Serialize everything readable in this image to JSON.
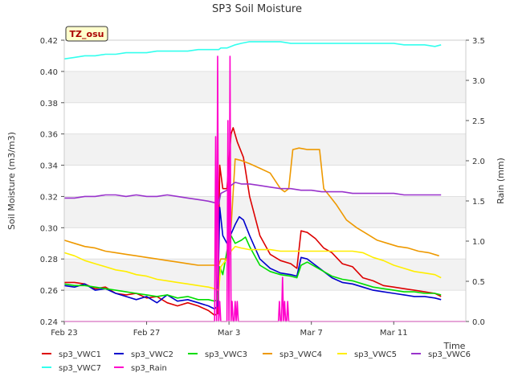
{
  "chart_data": {
    "type": "line",
    "title": "SP3 Soil Moisture",
    "xlabel": "Time",
    "ylabel": "Soil Moisture (m3/m3)",
    "y2label": "Rain (mm)",
    "site_tag": "TZ_osu",
    "xlim": [
      0,
      19.5
    ],
    "ylim": [
      0.24,
      0.42
    ],
    "y2lim": [
      0.0,
      3.5
    ],
    "x_ticks": [
      {
        "value": 0,
        "label": "Feb 23"
      },
      {
        "value": 4,
        "label": "Feb 27"
      },
      {
        "value": 8,
        "label": "Mar 3"
      },
      {
        "value": 12,
        "label": "Mar 7"
      },
      {
        "value": 16,
        "label": "Mar 11"
      }
    ],
    "y_ticks": [
      0.24,
      0.26,
      0.28,
      0.3,
      0.32,
      0.34,
      0.36,
      0.38,
      0.4,
      0.42
    ],
    "y_tick_labels": [
      "0.24",
      "0.26",
      "0.28",
      "0.30",
      "0.32",
      "0.34",
      "0.36",
      "0.38",
      "0.40",
      "0.42"
    ],
    "y2_ticks": [
      0.0,
      0.5,
      1.0,
      1.5,
      2.0,
      2.5,
      3.0,
      3.5
    ],
    "y2_tick_labels": [
      "0.0",
      "0.5",
      "1.0",
      "1.5",
      "2.0",
      "2.5",
      "3.0",
      "3.5"
    ],
    "grid": "horizontal bands",
    "legend_position": "bottom",
    "series": [
      {
        "name": "sp3_VWC1",
        "color": "#dd0000",
        "axis": "left",
        "x": [
          0,
          0.5,
          1,
          1.5,
          2,
          2.5,
          3,
          3.5,
          4,
          4.5,
          5,
          5.5,
          6,
          6.5,
          7,
          7.3,
          7.45,
          7.55,
          7.7,
          7.9,
          8.1,
          8.2,
          8.4,
          8.7,
          9.0,
          9.5,
          10,
          10.5,
          11,
          11.3,
          11.5,
          11.8,
          12.2,
          12.6,
          13,
          13.5,
          14,
          14.5,
          15,
          15.5,
          16,
          16.5,
          17,
          17.5,
          18,
          18.3
        ],
        "y": [
          0.265,
          0.265,
          0.264,
          0.261,
          0.262,
          0.258,
          0.257,
          0.258,
          0.255,
          0.256,
          0.252,
          0.25,
          0.252,
          0.25,
          0.247,
          0.244,
          0.245,
          0.34,
          0.325,
          0.325,
          0.36,
          0.364,
          0.355,
          0.345,
          0.32,
          0.295,
          0.283,
          0.279,
          0.277,
          0.274,
          0.298,
          0.297,
          0.293,
          0.287,
          0.284,
          0.277,
          0.275,
          0.268,
          0.266,
          0.263,
          0.262,
          0.261,
          0.26,
          0.259,
          0.258,
          0.256
        ]
      },
      {
        "name": "sp3_VWC2",
        "color": "#0000cc",
        "axis": "left",
        "x": [
          0,
          0.5,
          1,
          1.5,
          2,
          2.5,
          3,
          3.5,
          4,
          4.5,
          5,
          5.5,
          6,
          6.5,
          7,
          7.3,
          7.45,
          7.55,
          7.7,
          7.9,
          8.1,
          8.3,
          8.5,
          8.7,
          9.0,
          9.5,
          10,
          10.5,
          11,
          11.3,
          11.5,
          11.8,
          12.2,
          12.6,
          13,
          13.5,
          14,
          14.5,
          15,
          15.5,
          16,
          16.5,
          17,
          17.5,
          18,
          18.3
        ],
        "y": [
          0.263,
          0.262,
          0.264,
          0.26,
          0.261,
          0.258,
          0.256,
          0.254,
          0.256,
          0.252,
          0.257,
          0.253,
          0.254,
          0.252,
          0.25,
          0.248,
          0.25,
          0.313,
          0.295,
          0.29,
          0.296,
          0.302,
          0.307,
          0.305,
          0.295,
          0.28,
          0.274,
          0.271,
          0.27,
          0.269,
          0.281,
          0.28,
          0.276,
          0.272,
          0.268,
          0.265,
          0.264,
          0.262,
          0.26,
          0.259,
          0.258,
          0.257,
          0.256,
          0.256,
          0.255,
          0.254
        ]
      },
      {
        "name": "sp3_VWC3",
        "color": "#00dd00",
        "axis": "left",
        "x": [
          0,
          0.5,
          1,
          1.5,
          2,
          2.5,
          3,
          3.5,
          4,
          4.5,
          5,
          5.5,
          6,
          6.5,
          7,
          7.3,
          7.45,
          7.55,
          7.7,
          7.9,
          8.1,
          8.3,
          8.6,
          8.8,
          9.0,
          9.5,
          10,
          10.5,
          11,
          11.3,
          11.5,
          11.8,
          12.2,
          12.6,
          13,
          13.5,
          14,
          14.5,
          15,
          15.5,
          16,
          16.5,
          17,
          17.5,
          18,
          18.3
        ],
        "y": [
          0.264,
          0.263,
          0.263,
          0.262,
          0.261,
          0.26,
          0.259,
          0.258,
          0.257,
          0.256,
          0.257,
          0.255,
          0.256,
          0.254,
          0.254,
          0.253,
          0.254,
          0.275,
          0.27,
          0.285,
          0.295,
          0.29,
          0.292,
          0.294,
          0.288,
          0.276,
          0.272,
          0.27,
          0.269,
          0.268,
          0.276,
          0.278,
          0.275,
          0.272,
          0.269,
          0.267,
          0.266,
          0.264,
          0.262,
          0.261,
          0.26,
          0.259,
          0.259,
          0.258,
          0.258,
          0.257
        ]
      },
      {
        "name": "sp3_VWC4",
        "color": "#ee9900",
        "axis": "left",
        "x": [
          0,
          0.5,
          1,
          1.5,
          2,
          2.5,
          3,
          3.5,
          4,
          4.5,
          5,
          5.5,
          6,
          6.5,
          7,
          7.3,
          7.5,
          7.6,
          7.9,
          8.1,
          8.3,
          8.6,
          9.0,
          9.5,
          10,
          10.5,
          10.7,
          10.9,
          11.1,
          11.4,
          11.8,
          12.2,
          12.4,
          12.6,
          12.9,
          13.2,
          13.7,
          14.2,
          14.7,
          15.2,
          15.7,
          16.2,
          16.7,
          17.2,
          17.7,
          18.2
        ],
        "y": [
          0.292,
          0.29,
          0.288,
          0.287,
          0.285,
          0.284,
          0.283,
          0.282,
          0.281,
          0.28,
          0.279,
          0.278,
          0.277,
          0.276,
          0.276,
          0.276,
          0.276,
          0.28,
          0.28,
          0.3,
          0.344,
          0.343,
          0.341,
          0.338,
          0.335,
          0.325,
          0.323,
          0.325,
          0.35,
          0.351,
          0.35,
          0.35,
          0.35,
          0.325,
          0.32,
          0.315,
          0.305,
          0.3,
          0.296,
          0.292,
          0.29,
          0.288,
          0.287,
          0.285,
          0.284,
          0.282
        ]
      },
      {
        "name": "sp3_VWC5",
        "color": "#ffee00",
        "axis": "left",
        "x": [
          0,
          0.5,
          1,
          1.5,
          2,
          2.5,
          3,
          3.5,
          4,
          4.5,
          5,
          5.5,
          6,
          6.5,
          7,
          7.3,
          7.5,
          7.6,
          7.9,
          8.1,
          8.3,
          8.6,
          9.0,
          9.5,
          10,
          10.5,
          11,
          11.5,
          12,
          12.5,
          13,
          13.5,
          14,
          14.5,
          15,
          15.5,
          16,
          16.5,
          17,
          17.5,
          18,
          18.3
        ],
        "y": [
          0.284,
          0.282,
          0.279,
          0.277,
          0.275,
          0.273,
          0.272,
          0.27,
          0.269,
          0.267,
          0.266,
          0.265,
          0.264,
          0.263,
          0.262,
          0.261,
          0.26,
          0.275,
          0.28,
          0.285,
          0.288,
          0.287,
          0.286,
          0.286,
          0.286,
          0.285,
          0.285,
          0.285,
          0.285,
          0.285,
          0.285,
          0.285,
          0.285,
          0.284,
          0.281,
          0.279,
          0.276,
          0.274,
          0.272,
          0.271,
          0.27,
          0.268
        ]
      },
      {
        "name": "sp3_VWC6",
        "color": "#9933cc",
        "axis": "left",
        "x": [
          0,
          0.5,
          1,
          1.5,
          2,
          2.5,
          3,
          3.5,
          4,
          4.5,
          5,
          5.5,
          6,
          6.5,
          7,
          7.3,
          7.5,
          7.6,
          7.9,
          8.1,
          8.3,
          8.6,
          9.0,
          9.5,
          10,
          10.5,
          11,
          11.5,
          12,
          12.5,
          13,
          13.5,
          14,
          14.5,
          15,
          15.5,
          16,
          16.5,
          17,
          17.5,
          18,
          18.3
        ],
        "y": [
          0.319,
          0.319,
          0.32,
          0.32,
          0.321,
          0.321,
          0.32,
          0.321,
          0.32,
          0.32,
          0.321,
          0.32,
          0.319,
          0.318,
          0.317,
          0.316,
          0.315,
          0.322,
          0.324,
          0.327,
          0.329,
          0.328,
          0.328,
          0.327,
          0.326,
          0.325,
          0.325,
          0.324,
          0.324,
          0.323,
          0.323,
          0.323,
          0.322,
          0.322,
          0.322,
          0.322,
          0.322,
          0.321,
          0.321,
          0.321,
          0.321,
          0.321
        ]
      },
      {
        "name": "sp3_VWC7",
        "color": "#33ffee",
        "axis": "left",
        "x": [
          0,
          0.5,
          1,
          1.5,
          2,
          2.5,
          3,
          3.5,
          4,
          4.5,
          5,
          5.5,
          6,
          6.5,
          7,
          7.3,
          7.5,
          7.6,
          7.9,
          8.1,
          8.3,
          8.6,
          9.0,
          9.5,
          10,
          10.5,
          11,
          11.5,
          12,
          12.5,
          13,
          13.5,
          14,
          14.5,
          15,
          15.5,
          16,
          16.5,
          17,
          17.5,
          18,
          18.3
        ],
        "y": [
          0.408,
          0.409,
          0.41,
          0.41,
          0.411,
          0.411,
          0.412,
          0.412,
          0.412,
          0.413,
          0.413,
          0.413,
          0.413,
          0.414,
          0.414,
          0.414,
          0.414,
          0.415,
          0.415,
          0.416,
          0.417,
          0.418,
          0.419,
          0.419,
          0.419,
          0.419,
          0.418,
          0.418,
          0.418,
          0.418,
          0.418,
          0.418,
          0.418,
          0.418,
          0.418,
          0.418,
          0.418,
          0.417,
          0.417,
          0.417,
          0.416,
          0.417
        ]
      },
      {
        "name": "sp3_Rain",
        "color": "#ff00cc",
        "axis": "right",
        "x": [
          0,
          7.3,
          7.35,
          7.4,
          7.45,
          7.5,
          7.55,
          7.6,
          7.62,
          7.9,
          7.95,
          8.0,
          8.05,
          8.1,
          8.15,
          8.2,
          8.25,
          8.3,
          8.35,
          8.4,
          8.45,
          10.4,
          10.45,
          10.5,
          10.55,
          10.6,
          10.65,
          10.7,
          10.75,
          10.8,
          10.85,
          10.9,
          10.95,
          11.0,
          11.05,
          19.5
        ],
        "y": [
          0.0,
          0.0,
          2.3,
          0.0,
          3.3,
          0.0,
          0.25,
          0.0,
          0.0,
          0.0,
          2.5,
          0.0,
          3.3,
          0.0,
          0.25,
          0.0,
          0.0,
          0.25,
          0.0,
          0.25,
          0.0,
          0.0,
          0.25,
          0.0,
          0.0,
          0.55,
          0.0,
          0.25,
          0.0,
          0.0,
          0.25,
          0.0,
          0.0,
          0.0,
          0.0,
          0.0
        ]
      }
    ]
  }
}
